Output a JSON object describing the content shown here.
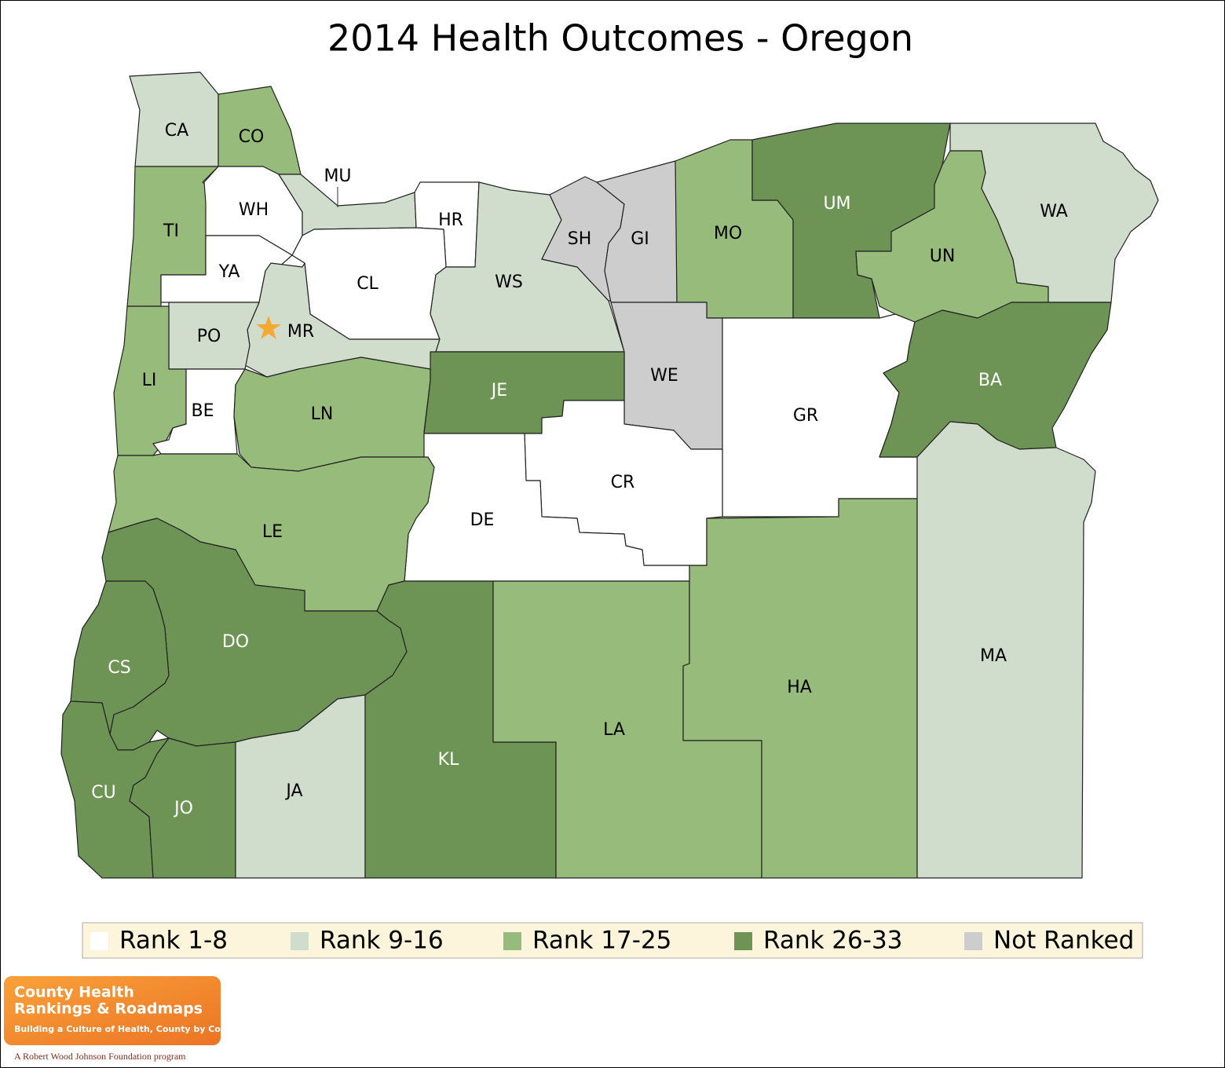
{
  "title": "2014 Health Outcomes - Oregon",
  "counties": [
    {
      "label": "CA",
      "color": "#d0ddcc"
    },
    {
      "label": "CO",
      "color": "#97bb7a"
    },
    {
      "label": "TI",
      "color": "#97bb7a"
    },
    {
      "label": "WH",
      "color": "#ffffff"
    },
    {
      "label": "YA",
      "color": "#ffffff"
    },
    {
      "label": "MU",
      "color": "#d0ddcc"
    },
    {
      "label": "HR",
      "color": "#ffffff"
    },
    {
      "label": "CL",
      "color": "#ffffff"
    },
    {
      "label": "MR",
      "color": "#d0ddcc"
    },
    {
      "label": "PO",
      "color": "#d0ddcc"
    },
    {
      "label": "LI",
      "color": "#97bb7a"
    },
    {
      "label": "BE",
      "color": "#ffffff"
    },
    {
      "label": "LN",
      "color": "#97bb7a"
    },
    {
      "label": "WS",
      "color": "#d0ddcc"
    },
    {
      "label": "SH",
      "color": "#cdcdcd"
    },
    {
      "label": "GI",
      "color": "#cdcdcd"
    },
    {
      "label": "MO",
      "color": "#97bb7a"
    },
    {
      "label": "UM",
      "color": "#6e9455"
    },
    {
      "label": "UN",
      "color": "#97bb7a"
    },
    {
      "label": "WA",
      "color": "#d0ddcc"
    },
    {
      "label": "WE",
      "color": "#cdcdcd"
    },
    {
      "label": "JE",
      "color": "#6e9455"
    },
    {
      "label": "GR",
      "color": "#ffffff"
    },
    {
      "label": "BA",
      "color": "#6e9455"
    },
    {
      "label": "CR",
      "color": "#ffffff"
    },
    {
      "label": "DE",
      "color": "#ffffff"
    },
    {
      "label": "LE",
      "color": "#97bb7a"
    },
    {
      "label": "DO",
      "color": "#6e9455"
    },
    {
      "label": "CS",
      "color": "#6e9455"
    },
    {
      "label": "CU",
      "color": "#6e9455"
    },
    {
      "label": "JO",
      "color": "#6e9455"
    },
    {
      "label": "JA",
      "color": "#d0ddcc"
    },
    {
      "label": "KL",
      "color": "#6e9455"
    },
    {
      "label": "LA",
      "color": "#97bb7a"
    },
    {
      "label": "HA",
      "color": "#97bb7a"
    },
    {
      "label": "MA",
      "color": "#d0ddcc"
    }
  ],
  "legend": [
    {
      "name": "Rank 1-8",
      "color": "#ffffff"
    },
    {
      "name": "Rank 9-16",
      "color": "#d0ddcc"
    },
    {
      "name": "Rank 17-25",
      "color": "#97bb7a"
    },
    {
      "name": "Rank 26-33",
      "color": "#6e9455"
    },
    {
      "name": "Not Ranked",
      "color": "#cdcdcd"
    }
  ],
  "logo": {
    "line1": "County Health",
    "line2": "Rankings & Roadmaps",
    "tagline": "Building a Culture of Health, County by County",
    "footer": "A Robert Wood Johnson Foundation program"
  }
}
